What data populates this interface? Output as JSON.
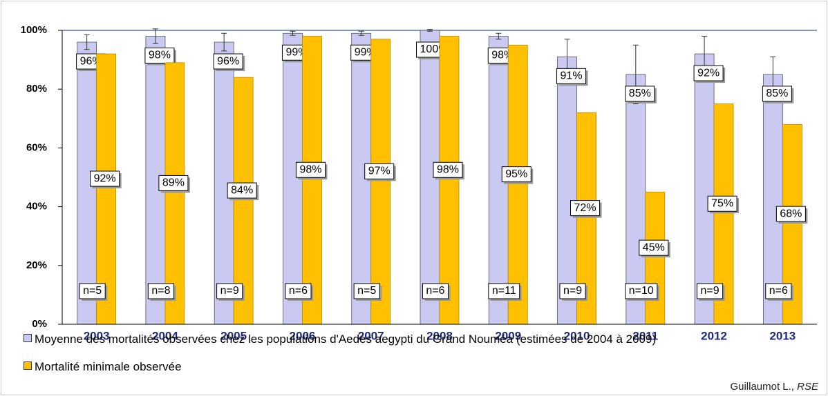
{
  "chart_data": {
    "type": "bar",
    "categories": [
      "2003",
      "2004",
      "2005",
      "2006",
      "2007",
      "2008",
      "2009",
      "2010",
      "2011",
      "2012",
      "2013"
    ],
    "series": [
      {
        "name": "Moyenne des mortalités observées chez les populations d'Aedes aegypti du Grand Nouméa (estimées de 2004 à 2009)",
        "color": "#c9c9f2",
        "values": [
          96,
          98,
          96,
          99,
          99,
          100,
          98,
          91,
          85,
          92,
          85
        ],
        "value_labels": [
          "96%",
          "98%",
          "96%",
          "99%",
          "99%",
          "100%",
          "98%",
          "91%",
          "85%",
          "92%",
          "85%"
        ],
        "errors": [
          2.5,
          2.5,
          3,
          0.7,
          0.7,
          0.3,
          1,
          6,
          10,
          6,
          6
        ]
      },
      {
        "name": "Mortalité minimale observée",
        "color": "#ffc000",
        "values": [
          92,
          89,
          84,
          98,
          97,
          98,
          95,
          72,
          45,
          75,
          68
        ],
        "value_labels": [
          "92%",
          "89%",
          "84%",
          "98%",
          "97%",
          "98%",
          "95%",
          "72%",
          "45%",
          "75%",
          "68%"
        ]
      }
    ],
    "sample_sizes": [
      "n=5",
      "n=8",
      "n=9",
      "n=6",
      "n=5",
      "n=6",
      "n=11",
      "n=9",
      "n=10",
      "n=9",
      "n=6"
    ],
    "ylim": [
      0,
      100
    ],
    "yticks": [
      {
        "value": 0,
        "label": "0%"
      },
      {
        "value": 20,
        "label": "20%"
      },
      {
        "value": 40,
        "label": "40%"
      },
      {
        "value": 60,
        "label": "60%"
      },
      {
        "value": 80,
        "label": "80%"
      },
      {
        "value": 100,
        "label": "100%"
      }
    ],
    "source": {
      "author": "Guillaumot L.,",
      "org": "RSE"
    }
  }
}
